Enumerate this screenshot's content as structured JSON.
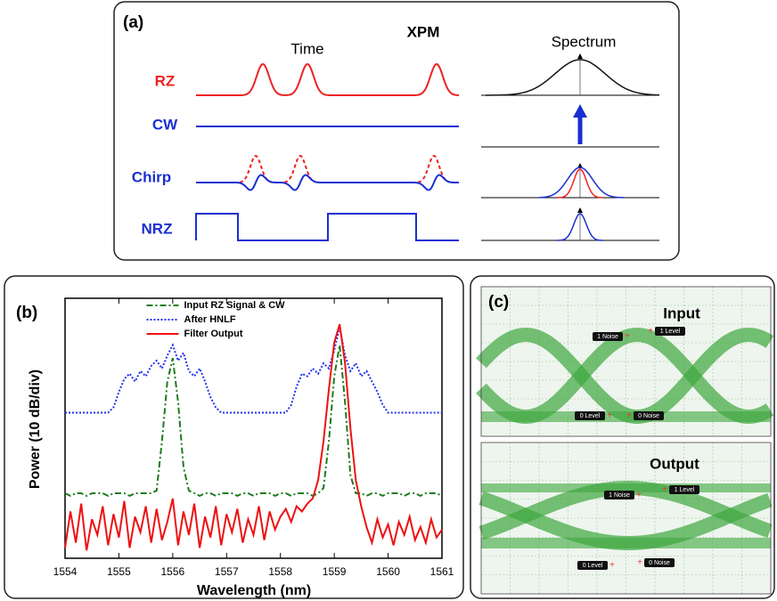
{
  "panel_a": {
    "label": "(a)",
    "time_label": "Time",
    "effect_label": "XPM",
    "spectrum_label": "Spectrum",
    "rows": [
      "RZ",
      "CW",
      "Chirp",
      "NRZ"
    ]
  },
  "chart_data": {
    "type": "line",
    "panel_label": "(b)",
    "x_label": "Wavelength (nm)",
    "y_label": "Power (10 dB/div)",
    "xlim": [
      1554,
      1561
    ],
    "xticks": [
      1554,
      1555,
      1556,
      1557,
      1558,
      1559,
      1560,
      1561
    ],
    "ylim": [
      0,
      10
    ],
    "legend": "upper center",
    "x": [
      1554.0,
      1554.1,
      1554.2,
      1554.3,
      1554.4,
      1554.5,
      1554.6,
      1554.7,
      1554.8,
      1554.9,
      1555.0,
      1555.1,
      1555.2,
      1555.3,
      1555.4,
      1555.5,
      1555.6,
      1555.7,
      1555.8,
      1555.9,
      1556.0,
      1556.1,
      1556.2,
      1556.3,
      1556.4,
      1556.5,
      1556.6,
      1556.7,
      1556.8,
      1556.9,
      1557.0,
      1557.1,
      1557.2,
      1557.3,
      1557.4,
      1557.5,
      1557.6,
      1557.7,
      1557.8,
      1557.9,
      1558.0,
      1558.1,
      1558.2,
      1558.3,
      1558.4,
      1558.5,
      1558.6,
      1558.7,
      1558.8,
      1558.9,
      1559.0,
      1559.1,
      1559.2,
      1559.3,
      1559.4,
      1559.5,
      1559.6,
      1559.7,
      1559.8,
      1559.9,
      1560.0,
      1560.1,
      1560.2,
      1560.3,
      1560.4,
      1560.5,
      1560.6,
      1560.7,
      1560.8,
      1560.9,
      1561.0
    ],
    "series": [
      {
        "name": "Input RZ Signal & CW",
        "color": "#1e7b1e",
        "linestyle": "dashdot",
        "values": [
          2.5,
          2.4,
          2.5,
          2.5,
          2.4,
          2.5,
          2.5,
          2.5,
          2.4,
          2.5,
          2.5,
          2.5,
          2.4,
          2.5,
          2.5,
          2.5,
          2.5,
          2.6,
          4.5,
          6.8,
          7.7,
          6.0,
          3.5,
          2.6,
          2.5,
          2.4,
          2.5,
          2.5,
          2.4,
          2.5,
          2.5,
          2.5,
          2.4,
          2.5,
          2.5,
          2.4,
          2.5,
          2.5,
          2.5,
          2.4,
          2.5,
          2.5,
          2.4,
          2.5,
          2.5,
          2.5,
          2.4,
          2.5,
          2.7,
          4.5,
          7.0,
          8.2,
          6.0,
          3.2,
          2.5,
          2.5,
          2.4,
          2.5,
          2.5,
          2.4,
          2.5,
          2.5,
          2.5,
          2.4,
          2.5,
          2.5,
          2.4,
          2.5,
          2.5,
          2.5,
          2.4
        ]
      },
      {
        "name": "After HNLF",
        "color": "#2233ee",
        "linestyle": "dotted",
        "values": [
          5.6,
          5.6,
          5.6,
          5.6,
          5.6,
          5.6,
          5.6,
          5.6,
          5.6,
          5.8,
          6.4,
          6.9,
          7.1,
          6.8,
          7.2,
          7.0,
          7.4,
          7.6,
          7.3,
          7.8,
          8.2,
          7.6,
          7.9,
          7.2,
          7.0,
          7.3,
          6.8,
          6.2,
          5.8,
          5.6,
          5.6,
          5.6,
          5.6,
          5.6,
          5.6,
          5.6,
          5.6,
          5.6,
          5.6,
          5.6,
          5.6,
          5.6,
          5.9,
          6.6,
          7.1,
          7.0,
          7.3,
          7.1,
          7.5,
          7.3,
          8.0,
          8.9,
          7.8,
          7.2,
          7.5,
          7.0,
          7.2,
          6.8,
          6.4,
          5.9,
          5.6,
          5.6,
          5.6,
          5.6,
          5.6,
          5.6,
          5.6,
          5.6,
          5.6,
          5.6,
          5.6
        ]
      },
      {
        "name": "Filter Output",
        "color": "#ee1111",
        "linestyle": "solid",
        "values": [
          0.4,
          1.8,
          0.6,
          2.1,
          0.3,
          1.5,
          0.9,
          2.0,
          0.5,
          1.7,
          0.8,
          2.2,
          0.4,
          1.6,
          1.0,
          2.0,
          0.6,
          1.9,
          0.7,
          1.4,
          2.3,
          0.5,
          1.8,
          0.9,
          2.1,
          0.4,
          1.6,
          0.8,
          2.0,
          0.5,
          1.7,
          1.0,
          1.9,
          0.6,
          1.5,
          0.9,
          2.0,
          0.7,
          1.8,
          1.1,
          1.6,
          1.9,
          1.4,
          2.0,
          1.8,
          2.1,
          2.3,
          3.0,
          4.5,
          6.5,
          8.3,
          9.0,
          7.5,
          5.0,
          3.0,
          2.0,
          1.2,
          0.6,
          1.5,
          0.8,
          1.3,
          0.5,
          1.4,
          0.9,
          1.6,
          0.7,
          1.2,
          0.6,
          1.5,
          0.8,
          1.1
        ]
      }
    ]
  },
  "panel_c": {
    "label": "(c)",
    "input": {
      "title": "Input",
      "markers": [
        "1 Noise",
        "1 Level",
        "0 Level",
        "0 Noise"
      ]
    },
    "output": {
      "title": "Output",
      "markers": [
        "1 Noise",
        "1 Level",
        "0 Level",
        "0 Noise"
      ]
    }
  }
}
